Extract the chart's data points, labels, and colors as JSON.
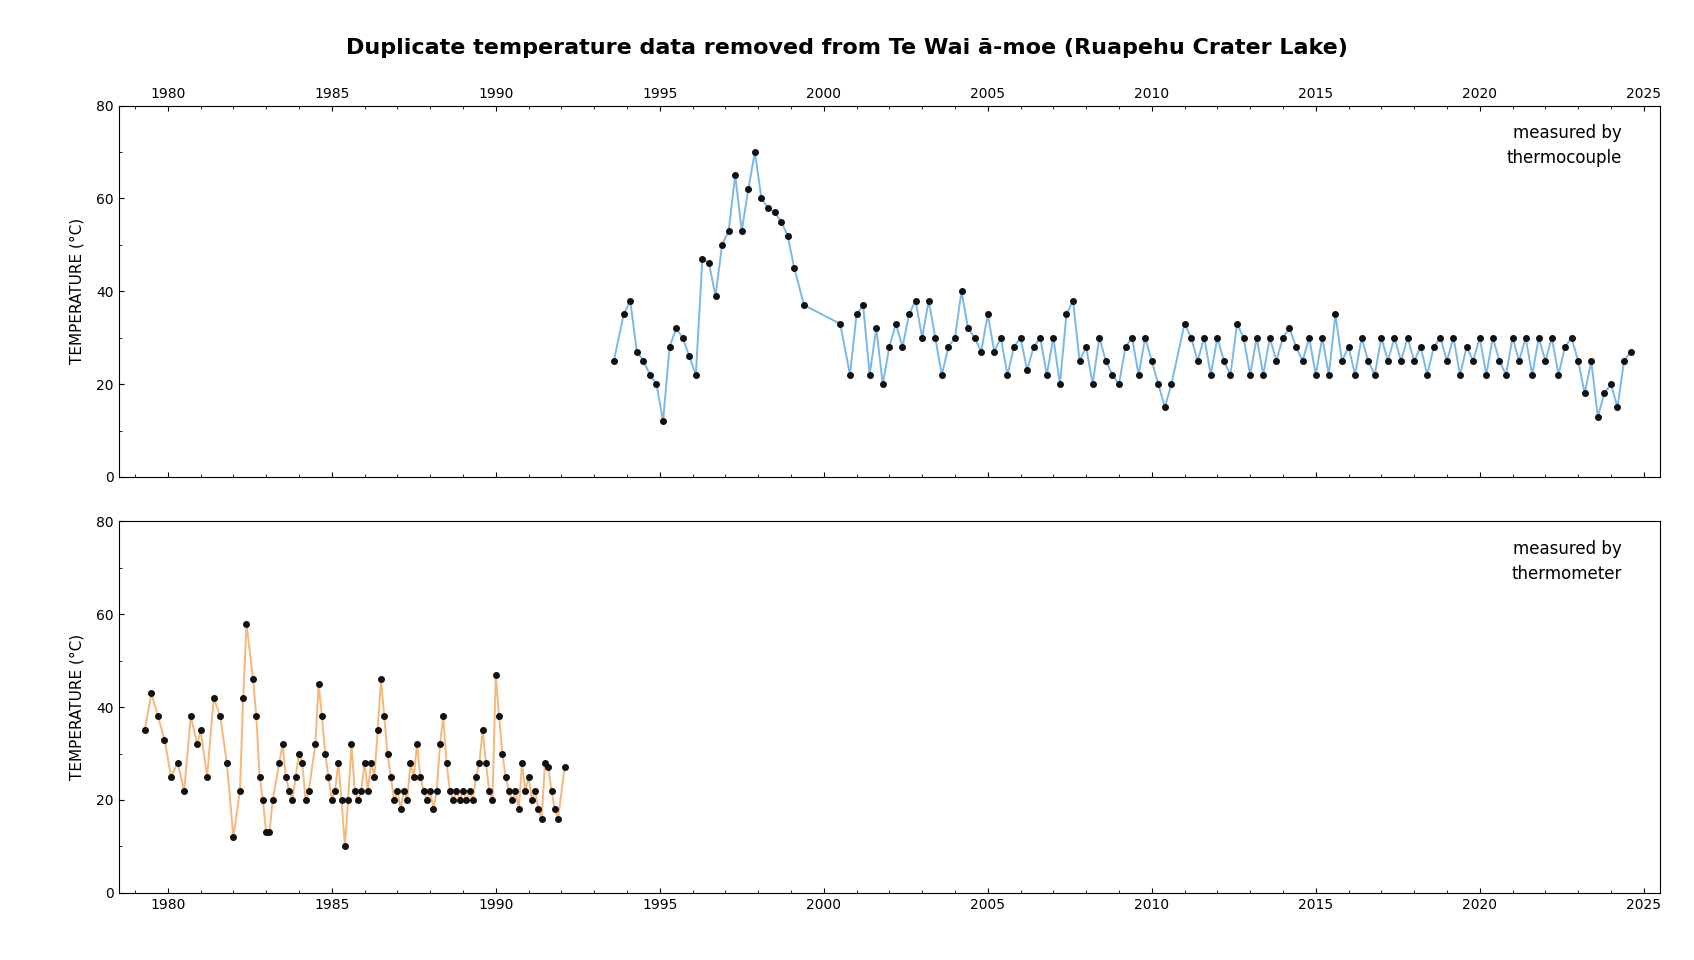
{
  "title": "Duplicate temperature data removed from Te Wai ā-moe (Ruapehu Crater Lake)",
  "ylabel": "TEMPERATURE (°C)",
  "ylim": [
    0,
    80
  ],
  "xlim": [
    1978.5,
    2025.5
  ],
  "xticks": [
    1980,
    1985,
    1990,
    1995,
    2000,
    2005,
    2010,
    2015,
    2020,
    2025
  ],
  "yticks": [
    0,
    20,
    40,
    60,
    80
  ],
  "tc_color": "#7ab8e8",
  "th_color": "#f5b87a",
  "dot_color": "#111111",
  "tc_label": "measured by\nthermocouple",
  "th_label": "measured by\nthermometer",
  "tc_data": [
    [
      1993.6,
      25
    ],
    [
      1993.9,
      35
    ],
    [
      1994.1,
      38
    ],
    [
      1994.3,
      27
    ],
    [
      1994.5,
      25
    ],
    [
      1994.7,
      22
    ],
    [
      1994.9,
      20
    ],
    [
      1995.1,
      12
    ],
    [
      1995.3,
      28
    ],
    [
      1995.5,
      32
    ],
    [
      1995.7,
      30
    ],
    [
      1995.9,
      26
    ],
    [
      1996.1,
      22
    ],
    [
      1996.3,
      47
    ],
    [
      1996.5,
      46
    ],
    [
      1996.7,
      39
    ],
    [
      1996.9,
      50
    ],
    [
      1997.1,
      53
    ],
    [
      1997.3,
      65
    ],
    [
      1997.5,
      53
    ],
    [
      1997.7,
      62
    ],
    [
      1997.9,
      70
    ],
    [
      1998.1,
      60
    ],
    [
      1998.3,
      58
    ],
    [
      1998.5,
      57
    ],
    [
      1998.7,
      55
    ],
    [
      1998.9,
      52
    ],
    [
      1999.1,
      45
    ],
    [
      1999.4,
      37
    ],
    [
      2000.5,
      33
    ],
    [
      2000.8,
      22
    ],
    [
      2001.0,
      35
    ],
    [
      2001.2,
      37
    ],
    [
      2001.4,
      22
    ],
    [
      2001.6,
      32
    ],
    [
      2001.8,
      20
    ],
    [
      2002.0,
      28
    ],
    [
      2002.2,
      33
    ],
    [
      2002.4,
      28
    ],
    [
      2002.6,
      35
    ],
    [
      2002.8,
      38
    ],
    [
      2003.0,
      30
    ],
    [
      2003.2,
      38
    ],
    [
      2003.4,
      30
    ],
    [
      2003.6,
      22
    ],
    [
      2003.8,
      28
    ],
    [
      2004.0,
      30
    ],
    [
      2004.2,
      40
    ],
    [
      2004.4,
      32
    ],
    [
      2004.6,
      30
    ],
    [
      2004.8,
      27
    ],
    [
      2005.0,
      35
    ],
    [
      2005.2,
      27
    ],
    [
      2005.4,
      30
    ],
    [
      2005.6,
      22
    ],
    [
      2005.8,
      28
    ],
    [
      2006.0,
      30
    ],
    [
      2006.2,
      23
    ],
    [
      2006.4,
      28
    ],
    [
      2006.6,
      30
    ],
    [
      2006.8,
      22
    ],
    [
      2007.0,
      30
    ],
    [
      2007.2,
      20
    ],
    [
      2007.4,
      35
    ],
    [
      2007.6,
      38
    ],
    [
      2007.8,
      25
    ],
    [
      2008.0,
      28
    ],
    [
      2008.2,
      20
    ],
    [
      2008.4,
      30
    ],
    [
      2008.6,
      25
    ],
    [
      2008.8,
      22
    ],
    [
      2009.0,
      20
    ],
    [
      2009.2,
      28
    ],
    [
      2009.4,
      30
    ],
    [
      2009.6,
      22
    ],
    [
      2009.8,
      30
    ],
    [
      2010.0,
      25
    ],
    [
      2010.2,
      20
    ],
    [
      2010.4,
      15
    ],
    [
      2010.6,
      20
    ],
    [
      2011.0,
      33
    ],
    [
      2011.2,
      30
    ],
    [
      2011.4,
      25
    ],
    [
      2011.6,
      30
    ],
    [
      2011.8,
      22
    ],
    [
      2012.0,
      30
    ],
    [
      2012.2,
      25
    ],
    [
      2012.4,
      22
    ],
    [
      2012.6,
      33
    ],
    [
      2012.8,
      30
    ],
    [
      2013.0,
      22
    ],
    [
      2013.2,
      30
    ],
    [
      2013.4,
      22
    ],
    [
      2013.6,
      30
    ],
    [
      2013.8,
      25
    ],
    [
      2014.0,
      30
    ],
    [
      2014.2,
      32
    ],
    [
      2014.4,
      28
    ],
    [
      2014.6,
      25
    ],
    [
      2014.8,
      30
    ],
    [
      2015.0,
      22
    ],
    [
      2015.2,
      30
    ],
    [
      2015.4,
      22
    ],
    [
      2015.6,
      35
    ],
    [
      2015.8,
      25
    ],
    [
      2016.0,
      28
    ],
    [
      2016.2,
      22
    ],
    [
      2016.4,
      30
    ],
    [
      2016.6,
      25
    ],
    [
      2016.8,
      22
    ],
    [
      2017.0,
      30
    ],
    [
      2017.2,
      25
    ],
    [
      2017.4,
      30
    ],
    [
      2017.6,
      25
    ],
    [
      2017.8,
      30
    ],
    [
      2018.0,
      25
    ],
    [
      2018.2,
      28
    ],
    [
      2018.4,
      22
    ],
    [
      2018.6,
      28
    ],
    [
      2018.8,
      30
    ],
    [
      2019.0,
      25
    ],
    [
      2019.2,
      30
    ],
    [
      2019.4,
      22
    ],
    [
      2019.6,
      28
    ],
    [
      2019.8,
      25
    ],
    [
      2020.0,
      30
    ],
    [
      2020.2,
      22
    ],
    [
      2020.4,
      30
    ],
    [
      2020.6,
      25
    ],
    [
      2020.8,
      22
    ],
    [
      2021.0,
      30
    ],
    [
      2021.2,
      25
    ],
    [
      2021.4,
      30
    ],
    [
      2021.6,
      22
    ],
    [
      2021.8,
      30
    ],
    [
      2022.0,
      25
    ],
    [
      2022.2,
      30
    ],
    [
      2022.4,
      22
    ],
    [
      2022.6,
      28
    ],
    [
      2022.8,
      30
    ],
    [
      2023.0,
      25
    ],
    [
      2023.2,
      18
    ],
    [
      2023.4,
      25
    ],
    [
      2023.6,
      13
    ],
    [
      2023.8,
      18
    ],
    [
      2024.0,
      20
    ],
    [
      2024.2,
      15
    ],
    [
      2024.4,
      25
    ],
    [
      2024.6,
      27
    ]
  ],
  "th_data": [
    [
      1979.3,
      35
    ],
    [
      1979.5,
      43
    ],
    [
      1979.7,
      38
    ],
    [
      1979.9,
      33
    ],
    [
      1980.1,
      25
    ],
    [
      1980.3,
      28
    ],
    [
      1980.5,
      22
    ],
    [
      1980.7,
      38
    ],
    [
      1980.9,
      32
    ],
    [
      1981.0,
      35
    ],
    [
      1981.2,
      25
    ],
    [
      1981.4,
      42
    ],
    [
      1981.6,
      38
    ],
    [
      1981.8,
      28
    ],
    [
      1982.0,
      12
    ],
    [
      1982.2,
      22
    ],
    [
      1982.3,
      42
    ],
    [
      1982.4,
      58
    ],
    [
      1982.6,
      46
    ],
    [
      1982.7,
      38
    ],
    [
      1982.8,
      25
    ],
    [
      1982.9,
      20
    ],
    [
      1983.0,
      13
    ],
    [
      1983.1,
      13
    ],
    [
      1983.2,
      20
    ],
    [
      1983.4,
      28
    ],
    [
      1983.5,
      32
    ],
    [
      1983.6,
      25
    ],
    [
      1983.7,
      22
    ],
    [
      1983.8,
      20
    ],
    [
      1983.9,
      25
    ],
    [
      1984.0,
      30
    ],
    [
      1984.1,
      28
    ],
    [
      1984.2,
      20
    ],
    [
      1984.3,
      22
    ],
    [
      1984.5,
      32
    ],
    [
      1984.6,
      45
    ],
    [
      1984.7,
      38
    ],
    [
      1984.8,
      30
    ],
    [
      1984.9,
      25
    ],
    [
      1985.0,
      20
    ],
    [
      1985.1,
      22
    ],
    [
      1985.2,
      28
    ],
    [
      1985.3,
      20
    ],
    [
      1985.4,
      10
    ],
    [
      1985.5,
      20
    ],
    [
      1985.6,
      32
    ],
    [
      1985.7,
      22
    ],
    [
      1985.8,
      20
    ],
    [
      1985.9,
      22
    ],
    [
      1986.0,
      28
    ],
    [
      1986.1,
      22
    ],
    [
      1986.2,
      28
    ],
    [
      1986.3,
      25
    ],
    [
      1986.4,
      35
    ],
    [
      1986.5,
      46
    ],
    [
      1986.6,
      38
    ],
    [
      1986.7,
      30
    ],
    [
      1986.8,
      25
    ],
    [
      1986.9,
      20
    ],
    [
      1987.0,
      22
    ],
    [
      1987.1,
      18
    ],
    [
      1987.2,
      22
    ],
    [
      1987.3,
      20
    ],
    [
      1987.4,
      28
    ],
    [
      1987.5,
      25
    ],
    [
      1987.6,
      32
    ],
    [
      1987.7,
      25
    ],
    [
      1987.8,
      22
    ],
    [
      1987.9,
      20
    ],
    [
      1988.0,
      22
    ],
    [
      1988.1,
      18
    ],
    [
      1988.2,
      22
    ],
    [
      1988.3,
      32
    ],
    [
      1988.4,
      38
    ],
    [
      1988.5,
      28
    ],
    [
      1988.6,
      22
    ],
    [
      1988.7,
      20
    ],
    [
      1988.8,
      22
    ],
    [
      1988.9,
      20
    ],
    [
      1989.0,
      22
    ],
    [
      1989.1,
      20
    ],
    [
      1989.2,
      22
    ],
    [
      1989.3,
      20
    ],
    [
      1989.4,
      25
    ],
    [
      1989.5,
      28
    ],
    [
      1989.6,
      35
    ],
    [
      1989.7,
      28
    ],
    [
      1989.8,
      22
    ],
    [
      1989.9,
      20
    ],
    [
      1990.0,
      47
    ],
    [
      1990.1,
      38
    ],
    [
      1990.2,
      30
    ],
    [
      1990.3,
      25
    ],
    [
      1990.4,
      22
    ],
    [
      1990.5,
      20
    ],
    [
      1990.6,
      22
    ],
    [
      1990.7,
      18
    ],
    [
      1990.8,
      28
    ],
    [
      1990.9,
      22
    ],
    [
      1991.0,
      25
    ],
    [
      1991.1,
      20
    ],
    [
      1991.2,
      22
    ],
    [
      1991.3,
      18
    ],
    [
      1991.4,
      16
    ],
    [
      1991.5,
      28
    ],
    [
      1991.6,
      27
    ],
    [
      1991.7,
      22
    ],
    [
      1991.8,
      18
    ],
    [
      1991.9,
      16
    ],
    [
      1992.1,
      27
    ]
  ]
}
